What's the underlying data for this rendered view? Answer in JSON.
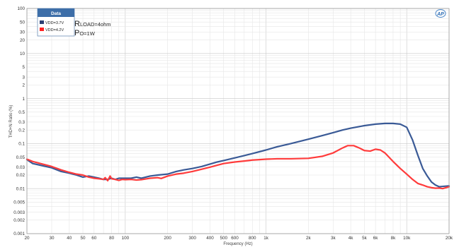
{
  "chart_data": {
    "type": "line",
    "xlabel": "Frequency (Hz)",
    "ylabel": "THD+N Ratio (%)",
    "x_scale": "log",
    "y_scale": "log",
    "xlim": [
      20,
      20000
    ],
    "ylim": [
      0.001,
      100
    ],
    "grid": true,
    "x_ticks": [
      {
        "value": 20,
        "label": "20"
      },
      {
        "value": 30,
        "label": "30"
      },
      {
        "value": 40,
        "label": "40"
      },
      {
        "value": 50,
        "label": "50"
      },
      {
        "value": 60,
        "label": "60"
      },
      {
        "value": 80,
        "label": "80"
      },
      {
        "value": 100,
        "label": "100"
      },
      {
        "value": 200,
        "label": "200"
      },
      {
        "value": 300,
        "label": "300"
      },
      {
        "value": 400,
        "label": "400"
      },
      {
        "value": 500,
        "label": "500"
      },
      {
        "value": 600,
        "label": "600"
      },
      {
        "value": 800,
        "label": "800"
      },
      {
        "value": 1000,
        "label": "1k"
      },
      {
        "value": 2000,
        "label": "2k"
      },
      {
        "value": 3000,
        "label": "3k"
      },
      {
        "value": 4000,
        "label": "4k"
      },
      {
        "value": 5000,
        "label": "5k"
      },
      {
        "value": 6000,
        "label": "6k"
      },
      {
        "value": 8000,
        "label": "8k"
      },
      {
        "value": 10000,
        "label": "10k"
      },
      {
        "value": 20000,
        "label": "20k"
      }
    ],
    "y_ticks": [
      {
        "value": 100,
        "label": "100"
      },
      {
        "value": 50,
        "label": "50"
      },
      {
        "value": 30,
        "label": "30"
      },
      {
        "value": 20,
        "label": "20"
      },
      {
        "value": 10,
        "label": "10"
      },
      {
        "value": 5,
        "label": "5"
      },
      {
        "value": 3,
        "label": "3"
      },
      {
        "value": 2,
        "label": "2"
      },
      {
        "value": 1,
        "label": "1"
      },
      {
        "value": 0.5,
        "label": "0.5"
      },
      {
        "value": 0.3,
        "label": "0.3"
      },
      {
        "value": 0.2,
        "label": "0.2"
      },
      {
        "value": 0.1,
        "label": "0.1"
      },
      {
        "value": 0.05,
        "label": "0.05"
      },
      {
        "value": 0.03,
        "label": "0.03"
      },
      {
        "value": 0.02,
        "label": "0.02"
      },
      {
        "value": 0.01,
        "label": "0.01"
      },
      {
        "value": 0.005,
        "label": "0.005"
      },
      {
        "value": 0.003,
        "label": "0.003"
      },
      {
        "value": 0.002,
        "label": "0.002"
      },
      {
        "value": 0.001,
        "label": "0.001"
      }
    ],
    "legend": {
      "title": "Data",
      "placement": "top-left"
    },
    "annotations": [
      {
        "id": "rload",
        "big": "R",
        "small": "LOAD=4ohm"
      },
      {
        "id": "po",
        "big": "P",
        "small": "O=1W"
      }
    ],
    "logo_text": "AP",
    "series": [
      {
        "name": "VDD=3.7V",
        "color": "#3a5a96",
        "x": [
          20,
          22,
          25,
          30,
          35,
          40,
          45,
          50,
          55,
          60,
          65,
          70,
          75,
          80,
          85,
          90,
          100,
          110,
          120,
          130,
          150,
          170,
          200,
          230,
          260,
          300,
          350,
          400,
          450,
          500,
          600,
          700,
          800,
          1000,
          1200,
          1500,
          2000,
          2500,
          3000,
          3500,
          4000,
          5000,
          6000,
          7000,
          8000,
          9000,
          10000,
          11000,
          12000,
          13000,
          14000,
          15000,
          16000,
          17000,
          18000,
          20000
        ],
        "y": [
          0.044,
          0.036,
          0.033,
          0.029,
          0.024,
          0.022,
          0.02,
          0.018,
          0.019,
          0.018,
          0.017,
          0.016,
          0.016,
          0.017,
          0.016,
          0.017,
          0.017,
          0.017,
          0.018,
          0.017,
          0.019,
          0.02,
          0.021,
          0.024,
          0.026,
          0.028,
          0.031,
          0.035,
          0.039,
          0.042,
          0.048,
          0.054,
          0.06,
          0.072,
          0.085,
          0.1,
          0.125,
          0.15,
          0.175,
          0.2,
          0.22,
          0.25,
          0.27,
          0.28,
          0.28,
          0.27,
          0.23,
          0.12,
          0.055,
          0.028,
          0.019,
          0.014,
          0.012,
          0.011,
          0.0112,
          0.0115
        ]
      },
      {
        "name": "VDD=4.2V",
        "color": "#ff3b3b",
        "x": [
          20,
          22,
          25,
          30,
          35,
          40,
          45,
          50,
          55,
          60,
          65,
          70,
          72,
          75,
          78,
          80,
          85,
          90,
          95,
          100,
          110,
          120,
          130,
          150,
          170,
          180,
          200,
          230,
          260,
          300,
          350,
          400,
          450,
          500,
          600,
          700,
          800,
          900,
          1000,
          1200,
          1500,
          2000,
          2500,
          3000,
          3500,
          3800,
          4200,
          4600,
          5000,
          5500,
          6000,
          6500,
          7000,
          8000,
          9000,
          10000,
          11000,
          12000,
          13000,
          14000,
          15000,
          16000,
          17000,
          18000,
          20000
        ],
        "y": [
          0.045,
          0.04,
          0.036,
          0.031,
          0.026,
          0.023,
          0.021,
          0.02,
          0.018,
          0.017,
          0.0165,
          0.016,
          0.0175,
          0.015,
          0.019,
          0.0165,
          0.016,
          0.0152,
          0.016,
          0.0158,
          0.016,
          0.0155,
          0.0158,
          0.017,
          0.0175,
          0.0168,
          0.019,
          0.021,
          0.022,
          0.024,
          0.027,
          0.03,
          0.033,
          0.036,
          0.039,
          0.041,
          0.043,
          0.044,
          0.045,
          0.046,
          0.046,
          0.047,
          0.052,
          0.062,
          0.08,
          0.09,
          0.09,
          0.08,
          0.07,
          0.068,
          0.075,
          0.072,
          0.062,
          0.04,
          0.028,
          0.021,
          0.016,
          0.013,
          0.012,
          0.011,
          0.0105,
          0.0102,
          0.0103,
          0.01,
          0.011
        ]
      }
    ]
  }
}
